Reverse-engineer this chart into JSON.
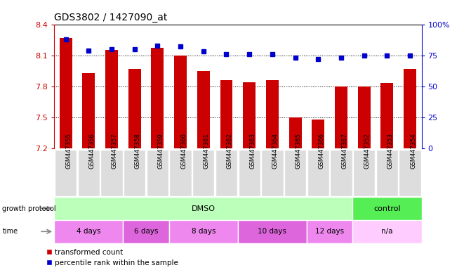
{
  "title": "GDS3802 / 1427090_at",
  "samples": [
    "GSM447355",
    "GSM447356",
    "GSM447357",
    "GSM447358",
    "GSM447359",
    "GSM447360",
    "GSM447361",
    "GSM447362",
    "GSM447363",
    "GSM447364",
    "GSM447365",
    "GSM447366",
    "GSM447367",
    "GSM447352",
    "GSM447353",
    "GSM447354"
  ],
  "bar_values": [
    8.27,
    7.93,
    8.15,
    7.97,
    8.17,
    8.1,
    7.95,
    7.86,
    7.84,
    7.86,
    7.5,
    7.48,
    7.8,
    7.8,
    7.83,
    7.97
  ],
  "dot_values": [
    88,
    79,
    80,
    80,
    83,
    82,
    78,
    76,
    76,
    76,
    73,
    72,
    73,
    75,
    75,
    75
  ],
  "ylim_left": [
    7.2,
    8.4
  ],
  "ylim_right": [
    0,
    100
  ],
  "yticks_left": [
    7.2,
    7.5,
    7.8,
    8.1,
    8.4
  ],
  "yticks_right": [
    0,
    25,
    50,
    75,
    100
  ],
  "ytick_labels_left": [
    "7.2",
    "7.5",
    "7.8",
    "8.1",
    "8.4"
  ],
  "ytick_labels_right": [
    "0",
    "25",
    "50",
    "75",
    "100%"
  ],
  "bar_color": "#cc0000",
  "dot_color": "#0000cc",
  "bar_width": 0.55,
  "growth_protocol_groups": [
    {
      "label": "DMSO",
      "start": 0,
      "end": 13,
      "color": "#bbffbb"
    },
    {
      "label": "control",
      "start": 13,
      "end": 16,
      "color": "#55ee55"
    }
  ],
  "time_groups": [
    {
      "label": "4 days",
      "start": 0,
      "end": 3,
      "color": "#ee88ee"
    },
    {
      "label": "6 days",
      "start": 3,
      "end": 5,
      "color": "#ee88ee"
    },
    {
      "label": "8 days",
      "start": 5,
      "end": 8,
      "color": "#ee88ee"
    },
    {
      "label": "10 days",
      "start": 8,
      "end": 11,
      "color": "#ee88ee"
    },
    {
      "label": "12 days",
      "start": 11,
      "end": 13,
      "color": "#ee88ee"
    },
    {
      "label": "n/a",
      "start": 13,
      "end": 16,
      "color": "#ffccff"
    }
  ],
  "legend_bar_label": "transformed count",
  "legend_dot_label": "percentile rank within the sample",
  "growth_protocol_label": "growth protocol",
  "time_label": "time",
  "background_color": "#ffffff",
  "tick_label_bg": "#dddddd"
}
